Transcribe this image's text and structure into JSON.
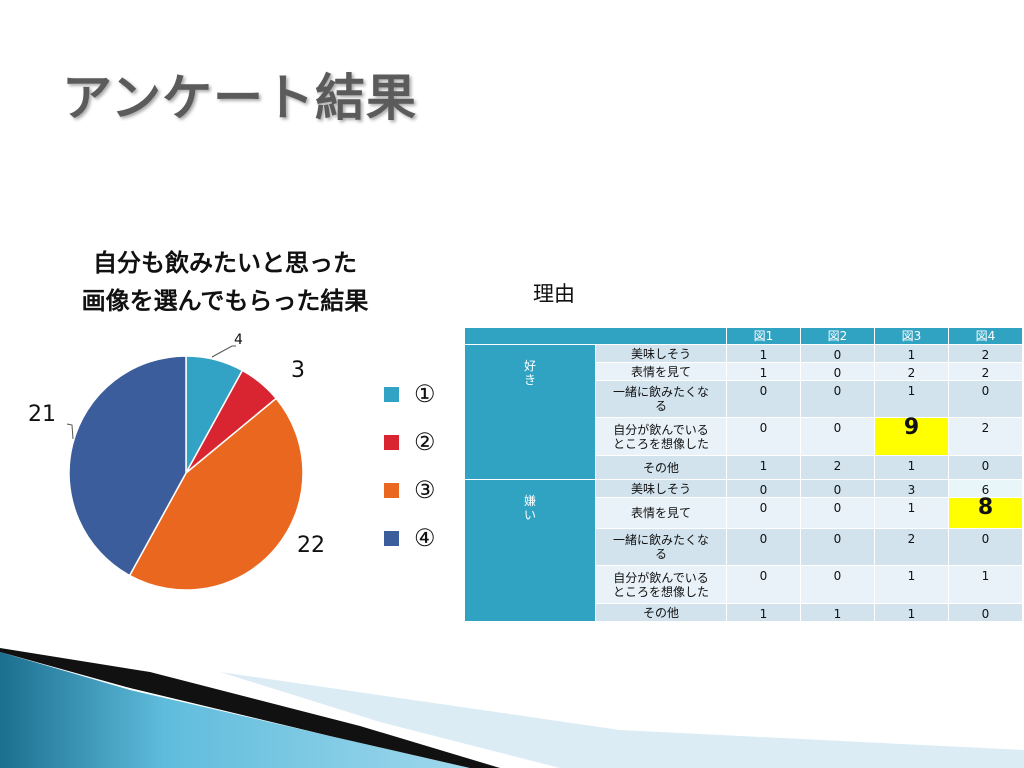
{
  "slide": {
    "title": "アンケート結果"
  },
  "chart_data": {
    "type": "pie",
    "title": "自分も飲みたいと思った画像を選んでもらった結果",
    "title_lines": [
      "自分も飲みたいと思った",
      "画像を選んでもらった結果"
    ],
    "categories": [
      "①",
      "②",
      "③",
      "④"
    ],
    "values": [
      4,
      3,
      22,
      21
    ],
    "colors": [
      "#32a3c4",
      "#d92432",
      "#ea671f",
      "#3b5d9b"
    ],
    "data_labels": [
      "4",
      "3",
      "22",
      "21"
    ],
    "legend": "right"
  },
  "table": {
    "label": "理由",
    "headers": [
      "",
      "図1",
      "図2",
      "図3",
      "図4"
    ],
    "groups": [
      {
        "name": "好き",
        "name_lines": [
          "好",
          "き"
        ],
        "rows": [
          {
            "reason": "美味しそう",
            "values": [
              "1",
              "0",
              "1",
              "2"
            ]
          },
          {
            "reason": "表情を見て",
            "values": [
              "1",
              "0",
              "2",
              "2"
            ]
          },
          {
            "reason": "一緒に飲みたくなる",
            "reason_lines": [
              "一緒に飲みたくな",
              "る"
            ],
            "values": [
              "0",
              "0",
              "1",
              "0"
            ]
          },
          {
            "reason": "自分が飲んでいるところを想像した",
            "reason_lines": [
              "自分が飲んでいる",
              "ところを想像した"
            ],
            "values": [
              "0",
              "0",
              "9",
              "2"
            ]
          },
          {
            "reason": "その他",
            "values": [
              "1",
              "2",
              "1",
              "0"
            ]
          }
        ]
      },
      {
        "name": "嫌い",
        "name_lines": [
          "嫌",
          "い"
        ],
        "rows": [
          {
            "reason": "美味しそう",
            "values": [
              "0",
              "0",
              "3",
              "6"
            ]
          },
          {
            "reason": "表情を見て",
            "values": [
              "0",
              "0",
              "1",
              "8"
            ]
          },
          {
            "reason": "一緒に飲みたくなる",
            "reason_lines": [
              "一緒に飲みたくな",
              "る"
            ],
            "values": [
              "0",
              "0",
              "2",
              "0"
            ]
          },
          {
            "reason": "自分が飲んでいるところを想像した",
            "reason_lines": [
              "自分が飲んでいる",
              "ところを想像した"
            ],
            "values": [
              "0",
              "0",
              "1",
              "1"
            ]
          },
          {
            "reason": "その他",
            "values": [
              "1",
              "1",
              "1",
              "0"
            ]
          }
        ]
      }
    ],
    "highlight_color": "#ffff00"
  }
}
